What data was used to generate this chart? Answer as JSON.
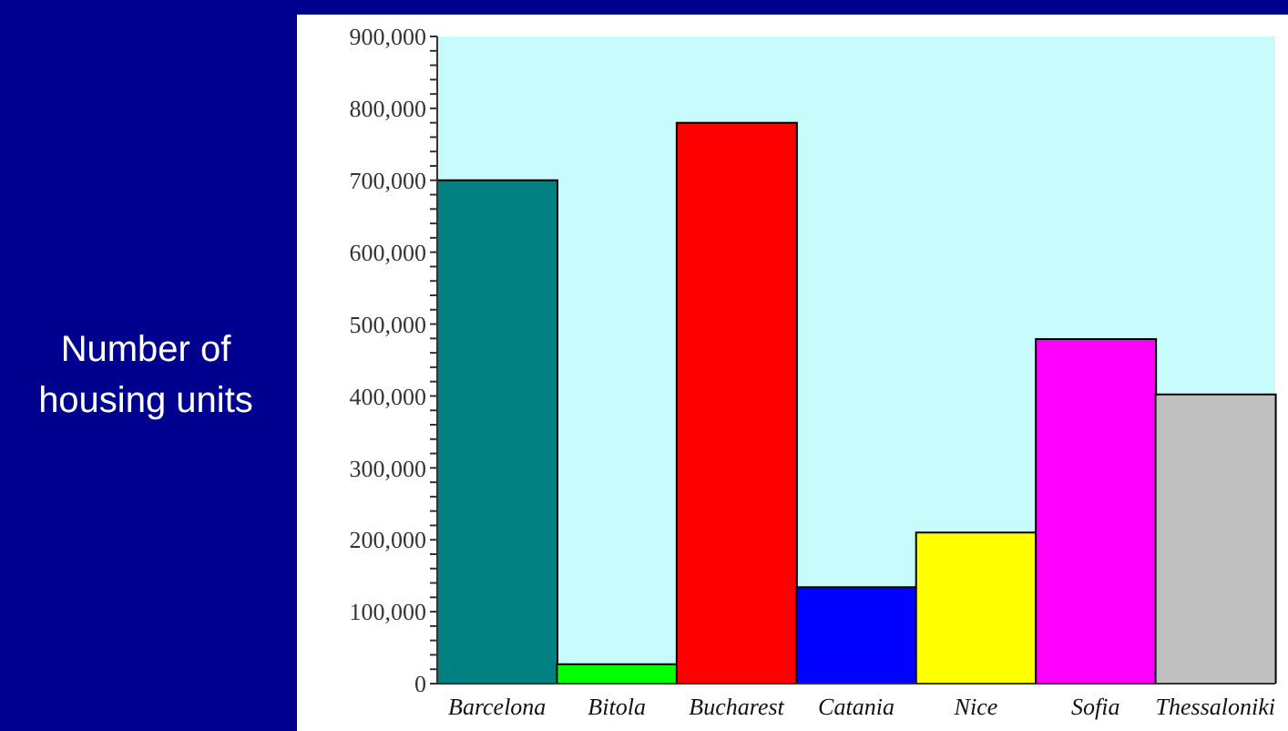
{
  "chart_data": {
    "type": "bar",
    "ylabel": "Number of housing units",
    "categories": [
      "Barcelona",
      "Bitola",
      "Bucharest",
      "Catania",
      "Nice",
      "Sofia",
      "Thessaloniki"
    ],
    "values": [
      700000,
      27000,
      780000,
      134000,
      210000,
      479000,
      402000
    ],
    "colors": [
      "#008080",
      "#00ff00",
      "#ff0000",
      "#0000ff",
      "#ffff00",
      "#ff00ff",
      "#c0c0c0"
    ],
    "ylim": [
      0,
      900000
    ],
    "yticks": [
      0,
      {
        "value": 20000,
        "label": null
      },
      {
        "value": 40000,
        "label": null
      },
      {
        "value": 60000,
        "label": null
      },
      {
        "value": 80000,
        "label": null
      },
      "100,000",
      {
        "value": 120000,
        "label": null
      },
      {
        "value": 140000,
        "label": null
      },
      {
        "value": 160000,
        "label": null
      },
      {
        "value": 180000,
        "label": null
      },
      {
        "value": 200000,
        "label": "200,000"
      },
      {
        "value": 220000,
        "label": null
      },
      {
        "value": 240000,
        "label": null
      },
      {
        "value": 260000,
        "label": null
      },
      {
        "value": 280000,
        "label": null
      },
      {
        "value": 300000,
        "label": "300,000"
      },
      {
        "value": 320000,
        "label": null
      },
      {
        "value": 340000,
        "label": null
      },
      {
        "value": 360000,
        "label": null
      },
      {
        "value": 380000,
        "label": null
      },
      {
        "value": 400000,
        "label": "400,000"
      },
      {
        "value": 420000,
        "label": null
      },
      {
        "value": 440000,
        "label": null
      },
      {
        "value": 460000,
        "label": null
      },
      {
        "value": 480000,
        "label": null
      },
      {
        "value": 500000,
        "label": "500,000"
      },
      {
        "value": 520000,
        "label": null
      },
      {
        "value": 540000,
        "label": null
      },
      {
        "value": 560000,
        "label": null
      },
      {
        "value": 580000,
        "label": null
      },
      {
        "value": 600000,
        "label": "600,000"
      },
      {
        "value": 620000,
        "label": null
      },
      {
        "value": 640000,
        "label": null
      },
      {
        "value": 660000,
        "label": null
      },
      {
        "value": 680000,
        "label": null
      },
      {
        "value": 700000,
        "label": "700,000"
      },
      {
        "value": 720000,
        "label": null
      },
      {
        "value": 740000,
        "label": null
      },
      {
        "value": 760000,
        "label": null
      },
      {
        "value": 780000,
        "label": null
      },
      {
        "value": 800000,
        "label": "800,000"
      },
      {
        "value": 820000,
        "label": null
      },
      {
        "value": 840000,
        "label": null
      },
      {
        "value": 860000,
        "label": null
      },
      {
        "value": 880000,
        "label": null
      },
      {
        "value": 900000,
        "label": "900,000"
      }
    ]
  }
}
